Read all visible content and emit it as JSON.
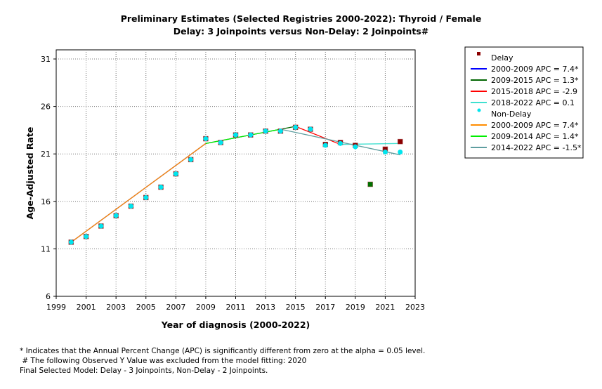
{
  "chart_data": {
    "type": "line",
    "title": "Preliminary Estimates (Selected Registries 2000-2022): Thyroid / Female",
    "subtitle": "Delay: 3 Joinpoints  versus  Non-Delay: 2 Joinpoints#",
    "xlabel": "Year of diagnosis (2000-2022)",
    "ylabel": "Age-Adjusted Rate",
    "xlim": [
      1999,
      2023
    ],
    "ylim": [
      6,
      31
    ],
    "xticks": [
      1999,
      2001,
      2003,
      2005,
      2007,
      2009,
      2011,
      2013,
      2015,
      2017,
      2019,
      2021,
      2023
    ],
    "yticks": [
      6,
      11,
      16,
      21,
      26,
      31
    ],
    "grid": true,
    "legend_position": "right",
    "x": [
      2000,
      2001,
      2002,
      2003,
      2004,
      2005,
      2006,
      2007,
      2008,
      2009,
      2010,
      2011,
      2012,
      2013,
      2014,
      2015,
      2016,
      2017,
      2018,
      2019,
      2020,
      2021,
      2022
    ],
    "observed": [
      {
        "name": "Delay",
        "color": "#8b0000",
        "marker": "square",
        "excluded_color": "#007000",
        "excluded_x": 2020,
        "values": [
          11.7,
          12.3,
          13.4,
          14.5,
          15.5,
          16.4,
          17.5,
          18.9,
          20.4,
          22.6,
          22.2,
          23.0,
          23.0,
          23.4,
          23.4,
          23.8,
          23.6,
          22.0,
          22.2,
          21.9,
          17.8,
          21.5,
          22.3
        ]
      },
      {
        "name": "Non-Delay",
        "color": "#00e5ee",
        "marker": "circle",
        "values": [
          11.7,
          12.3,
          13.4,
          14.5,
          15.5,
          16.4,
          17.5,
          18.9,
          20.4,
          22.6,
          22.2,
          23.0,
          23.0,
          23.4,
          23.4,
          23.8,
          23.6,
          21.9,
          22.1,
          21.75,
          null,
          21.2,
          21.2
        ]
      }
    ],
    "segments": [
      {
        "label": "2000-2009 APC  =  7.4*",
        "color": "#0000ff",
        "x": [
          2000,
          2009
        ],
        "y": [
          11.7,
          22.1
        ]
      },
      {
        "label": "2009-2015 APC  =  1.3*",
        "color": "#006400",
        "x": [
          2009,
          2015
        ],
        "y": [
          22.1,
          23.9
        ]
      },
      {
        "label": "2015-2018 APC  = -2.9",
        "color": "#ff0000",
        "x": [
          2015,
          2018
        ],
        "y": [
          23.9,
          22.0
        ]
      },
      {
        "label": "2018-2022 APC  =  0.1",
        "color": "#40e0d0",
        "x": [
          2018,
          2022
        ],
        "y": [
          22.0,
          22.1
        ]
      },
      {
        "label": "2000-2009 APC  =  7.4*",
        "color": "#ff8c00",
        "x": [
          2000,
          2009
        ],
        "y": [
          11.7,
          22.1
        ]
      },
      {
        "label": "2009-2014 APC  =  1.4*",
        "color": "#00ee00",
        "x": [
          2009,
          2014
        ],
        "y": [
          22.1,
          23.6
        ]
      },
      {
        "label": "2014-2022 APC  = -1.5*",
        "color": "#5f9ea0",
        "x": [
          2014,
          2022
        ],
        "y": [
          23.6,
          20.9
        ]
      }
    ]
  },
  "footnotes": [
    "* Indicates that the Annual Percent Change (APC) is significantly different from zero at the alpha = 0.05 level.",
    " # The following Observed Y Value was excluded from the model fitting: 2020",
    "Final Selected Model: Delay - 3 Joinpoints, Non-Delay - 2 Joinpoints."
  ]
}
